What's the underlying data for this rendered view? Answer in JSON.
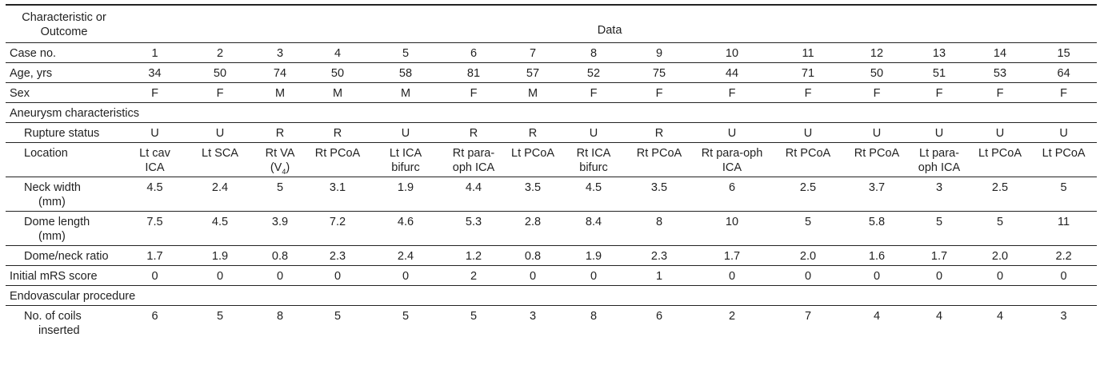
{
  "header": {
    "col_label_line1": "Characteristic or",
    "col_label_line2": "Outcome",
    "data_label": "Data"
  },
  "rows": {
    "case_no": {
      "label": "Case no.",
      "values": [
        "1",
        "2",
        "3",
        "4",
        "5",
        "6",
        "7",
        "8",
        "9",
        "10",
        "11",
        "12",
        "13",
        "14",
        "15"
      ]
    },
    "age": {
      "label": "Age, yrs",
      "values": [
        "34",
        "50",
        "74",
        "50",
        "58",
        "81",
        "57",
        "52",
        "75",
        "44",
        "71",
        "50",
        "51",
        "53",
        "64"
      ]
    },
    "sex": {
      "label": "Sex",
      "values": [
        "F",
        "F",
        "M",
        "M",
        "M",
        "F",
        "M",
        "F",
        "F",
        "F",
        "F",
        "F",
        "F",
        "F",
        "F"
      ]
    },
    "aneurysm_section": {
      "label": "Aneurysm characteristics"
    },
    "rupture": {
      "label": "Rupture status",
      "values": [
        "U",
        "U",
        "R",
        "R",
        "U",
        "R",
        "R",
        "U",
        "R",
        "U",
        "U",
        "U",
        "U",
        "U",
        "U"
      ]
    },
    "location": {
      "label": "Location",
      "values": [
        [
          "Lt cav",
          "ICA"
        ],
        [
          "Lt SCA"
        ],
        [
          "Rt VA",
          "(V4)"
        ],
        [
          "Rt PCoA"
        ],
        [
          "Lt ICA",
          "bifurc"
        ],
        [
          "Rt para-",
          "oph ICA"
        ],
        [
          "Lt PCoA"
        ],
        [
          "Rt ICA",
          "bifurc"
        ],
        [
          "Rt PCoA"
        ],
        [
          "Rt para-oph",
          "ICA"
        ],
        [
          "Rt PCoA"
        ],
        [
          "Rt PCoA"
        ],
        [
          "Lt para-",
          "oph ICA"
        ],
        [
          "Lt PCoA"
        ],
        [
          "Lt PCoA"
        ]
      ]
    },
    "neck_width": {
      "label_line1": "Neck width",
      "label_line2": "(mm)",
      "values": [
        "4.5",
        "2.4",
        "5",
        "3.1",
        "1.9",
        "4.4",
        "3.5",
        "4.5",
        "3.5",
        "6",
        "2.5",
        "3.7",
        "3",
        "2.5",
        "5"
      ]
    },
    "dome_length": {
      "label_line1": "Dome length",
      "label_line2": "(mm)",
      "values": [
        "7.5",
        "4.5",
        "3.9",
        "7.2",
        "4.6",
        "5.3",
        "2.8",
        "8.4",
        "8",
        "10",
        "5",
        "5.8",
        "5",
        "5",
        "11"
      ]
    },
    "dome_neck_ratio": {
      "label": "Dome/neck ratio",
      "values": [
        "1.7",
        "1.9",
        "0.8",
        "2.3",
        "2.4",
        "1.2",
        "0.8",
        "1.9",
        "2.3",
        "1.7",
        "2.0",
        "1.6",
        "1.7",
        "2.0",
        "2.2"
      ]
    },
    "initial_mrs": {
      "label": "Initial mRS score",
      "values": [
        "0",
        "0",
        "0",
        "0",
        "0",
        "2",
        "0",
        "0",
        "1",
        "0",
        "0",
        "0",
        "0",
        "0",
        "0"
      ]
    },
    "endovascular_section": {
      "label": "Endovascular procedure"
    },
    "coils": {
      "label_line1": "No. of coils",
      "label_line2": "inserted",
      "values": [
        "6",
        "5",
        "8",
        "5",
        "5",
        "5",
        "3",
        "8",
        "6",
        "2",
        "7",
        "4",
        "4",
        "4",
        "3"
      ]
    }
  }
}
